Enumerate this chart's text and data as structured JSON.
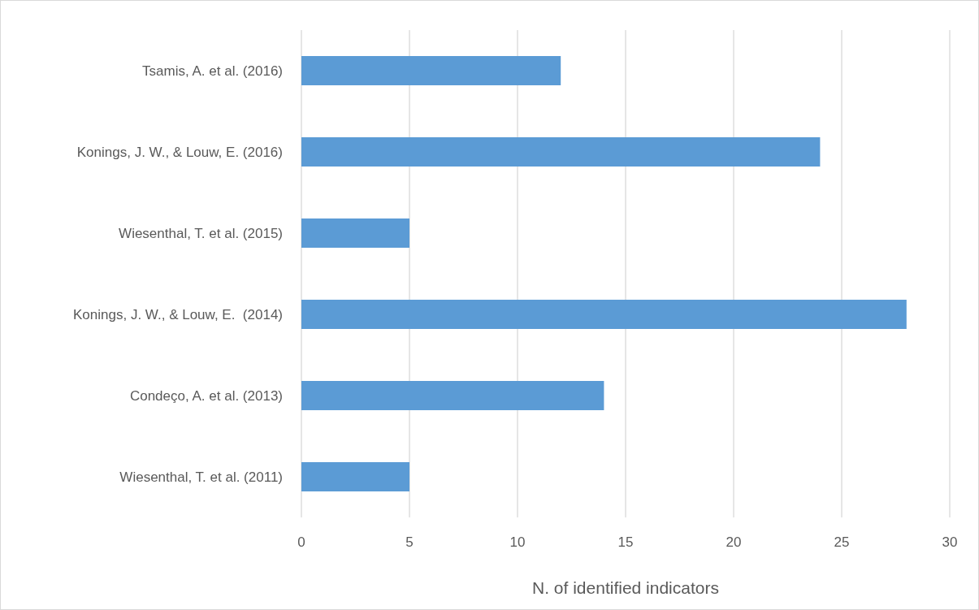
{
  "chart_data": {
    "type": "bar",
    "orientation": "horizontal",
    "xlabel": "N. of identified indicators",
    "categories": [
      "Tsamis, A. et al. (2016)",
      "Konings, J. W., & Louw, E. (2016)",
      "Wiesenthal, T. et al. (2015)",
      "Konings, J. W., & Louw, E.  (2014)",
      "Condeço, A. et al. (2013)",
      "Wiesenthal, T. et al. (2011)"
    ],
    "values": [
      12,
      24,
      5,
      28,
      14,
      5
    ],
    "color": "#5b9bd5",
    "xlim": [
      0,
      30
    ],
    "xticks": [
      0,
      5,
      10,
      15,
      20,
      25,
      30
    ],
    "grid": "x"
  }
}
